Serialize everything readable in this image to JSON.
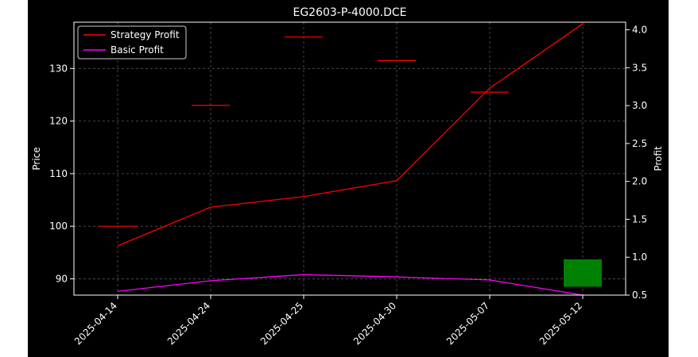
{
  "chart_data": {
    "type": "line",
    "title": "EG2603-P-4000.DCE",
    "xlabel": "",
    "ylabel_left": "Price",
    "ylabel_right": "Profit",
    "categories": [
      "2025-04-14",
      "2025-04-24",
      "2025-04-25",
      "2025-04-30",
      "2025-05-07",
      "2025-05-12"
    ],
    "price_axis": {
      "ylim": [
        86.9,
        138.8
      ],
      "ticks": [
        90,
        100,
        110,
        120,
        130
      ]
    },
    "profit_axis": {
      "ylim": [
        0.5,
        4.1
      ],
      "ticks": [
        0.5,
        1.0,
        1.5,
        2.0,
        2.5,
        3.0,
        3.5,
        4.0
      ]
    },
    "price_ticks": [
      {
        "date": "2025-04-14",
        "price": 100.0
      },
      {
        "date": "2025-04-24",
        "price": 123.0
      },
      {
        "date": "2025-04-25",
        "price": 136.0
      },
      {
        "date": "2025-04-30",
        "price": 131.5
      },
      {
        "date": "2025-05-07",
        "price": 125.5
      }
    ],
    "candles": [
      {
        "date": "2025-05-12",
        "open": 88.5,
        "close": 93.7,
        "color": "#008000"
      }
    ],
    "series": [
      {
        "name": "Strategy Profit",
        "color": "#ff0000",
        "axis": "right",
        "values": [
          1.15,
          1.66,
          1.8,
          2.01,
          3.23,
          4.08
        ]
      },
      {
        "name": "Basic Profit",
        "color": "#ff00ff",
        "axis": "right",
        "values": [
          0.55,
          0.69,
          0.77,
          0.74,
          0.7,
          0.5
        ]
      }
    ],
    "grid": true,
    "legend": "top-left"
  },
  "colors": {
    "background": "#000000",
    "grid": "#555555",
    "axis": "#ffffff"
  }
}
